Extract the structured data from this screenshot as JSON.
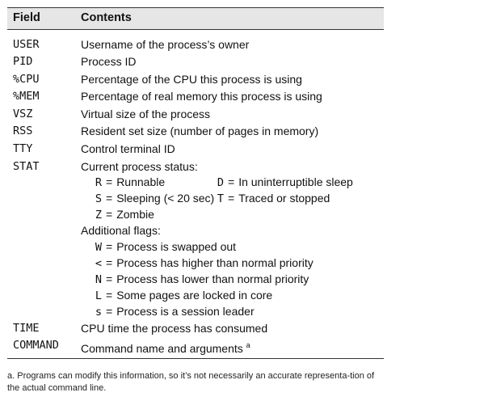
{
  "header": {
    "field": "Field",
    "contents": "Contents"
  },
  "rows": [
    {
      "field": "USER",
      "contents": "Username of the process’s owner"
    },
    {
      "field": "PID",
      "contents": "Process ID"
    },
    {
      "field": "%CPU",
      "contents": "Percentage of the CPU this process is using"
    },
    {
      "field": "%MEM",
      "contents": "Percentage of real memory this process is using"
    },
    {
      "field": "VSZ",
      "contents": "Virtual size of the process"
    },
    {
      "field": "RSS",
      "contents": "Resident set size (number of pages in memory)"
    },
    {
      "field": "TTY",
      "contents": "Control terminal ID"
    },
    {
      "field": "STAT",
      "contents": "Current process status:"
    }
  ],
  "status": [
    {
      "code": "R",
      "desc": "Runnable"
    },
    {
      "code": "D",
      "desc": "In uninterruptible sleep"
    },
    {
      "code": "S",
      "desc": "Sleeping (< 20 sec)"
    },
    {
      "code": "T",
      "desc": "Traced or stopped"
    },
    {
      "code": "Z",
      "desc": "Zombie"
    }
  ],
  "flags_label": "Additional flags:",
  "flags": [
    {
      "code": "W",
      "desc": "Process is swapped out"
    },
    {
      "code": "<",
      "desc": "Process has higher than normal priority"
    },
    {
      "code": "N",
      "desc": "Process has lower than normal priority"
    },
    {
      "code": "L",
      "desc": "Some pages are locked in core"
    },
    {
      "code": "s",
      "desc": "Process is a session leader"
    }
  ],
  "time_row": {
    "field": "TIME",
    "contents": "CPU time the process has consumed"
  },
  "command_row": {
    "field": "COMMAND",
    "contents": "Command name and arguments",
    "note_marker": "a"
  },
  "footnote": {
    "marker": "a.",
    "text": "Programs can modify this information, so it’s not necessarily an accurate representa-tion of the actual command line."
  }
}
